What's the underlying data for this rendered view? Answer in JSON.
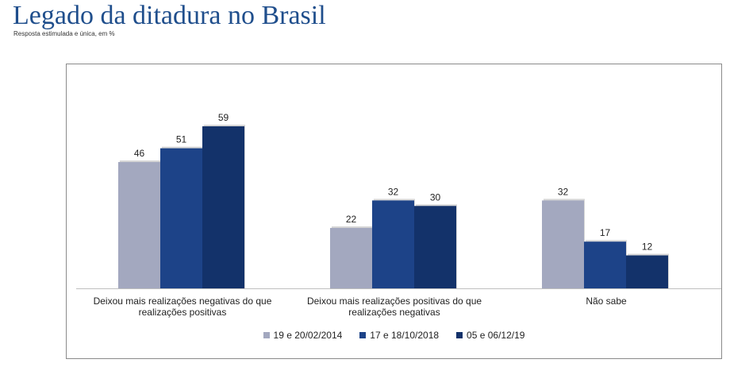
{
  "header": {
    "title": "Legado da ditadura no Brasil",
    "subtitle": "Resposta estimulada e única, em %"
  },
  "chart_data": {
    "type": "bar",
    "categories": [
      "Deixou mais realizações negativas do que realizações positivas",
      "Deixou mais realizações positivas do que realizações negativas",
      "Não sabe"
    ],
    "series": [
      {
        "name": "19 e 20/02/2014",
        "color": "#a3a8bf",
        "values": [
          46,
          22,
          32
        ]
      },
      {
        "name": "17 e 18/10/2018",
        "color": "#1d4388",
        "values": [
          51,
          32,
          17
        ]
      },
      {
        "name": "05 e 06/12/19",
        "color": "#13326a",
        "values": [
          59,
          30,
          12
        ]
      }
    ],
    "ylim": [
      0,
      65
    ],
    "grid": false,
    "legend_position": "bottom",
    "xlabel": "",
    "ylabel": ""
  }
}
